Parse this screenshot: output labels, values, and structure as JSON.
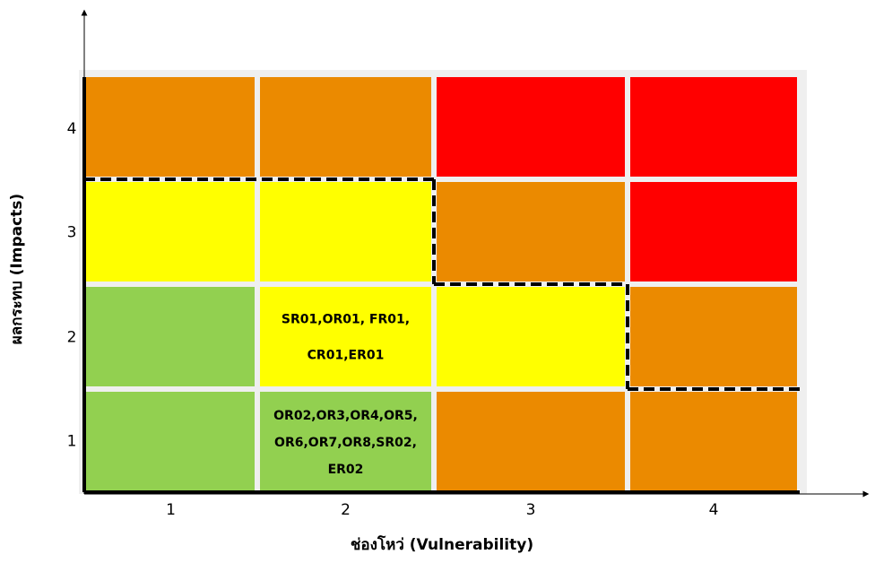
{
  "chart_data": {
    "type": "heatmap",
    "x_axis": {
      "label": "ช่องโหว่ (Vulnerability)",
      "ticks": [
        "1",
        "2",
        "3",
        "4"
      ]
    },
    "y_axis": {
      "label": "ผลกระทบ (Impacts)",
      "ticks": [
        "1",
        "2",
        "3",
        "4"
      ]
    },
    "colors": {
      "red": "#ff0000",
      "orange": "#eb8a00",
      "yellow": "#ffff00",
      "green": "#92d050",
      "background": "#efefef"
    },
    "cells": [
      {
        "impact": 4,
        "vulnerability": 1,
        "level": "orange"
      },
      {
        "impact": 4,
        "vulnerability": 2,
        "level": "orange"
      },
      {
        "impact": 4,
        "vulnerability": 3,
        "level": "red"
      },
      {
        "impact": 4,
        "vulnerability": 4,
        "level": "red"
      },
      {
        "impact": 3,
        "vulnerability": 1,
        "level": "yellow"
      },
      {
        "impact": 3,
        "vulnerability": 2,
        "level": "yellow"
      },
      {
        "impact": 3,
        "vulnerability": 3,
        "level": "orange"
      },
      {
        "impact": 3,
        "vulnerability": 4,
        "level": "red"
      },
      {
        "impact": 2,
        "vulnerability": 1,
        "level": "green"
      },
      {
        "impact": 2,
        "vulnerability": 2,
        "level": "yellow",
        "text_lines": [
          "SR01,OR01, FR01,",
          "CR01,ER01"
        ]
      },
      {
        "impact": 2,
        "vulnerability": 3,
        "level": "yellow"
      },
      {
        "impact": 2,
        "vulnerability": 4,
        "level": "orange"
      },
      {
        "impact": 1,
        "vulnerability": 1,
        "level": "green"
      },
      {
        "impact": 1,
        "vulnerability": 2,
        "level": "green",
        "text_lines": [
          "OR02,OR3,OR4,OR5,",
          "OR6,OR7,OR8,SR02,",
          "ER02"
        ]
      },
      {
        "impact": 1,
        "vulnerability": 3,
        "level": "orange"
      },
      {
        "impact": 1,
        "vulnerability": 4,
        "level": "orange"
      }
    ]
  }
}
